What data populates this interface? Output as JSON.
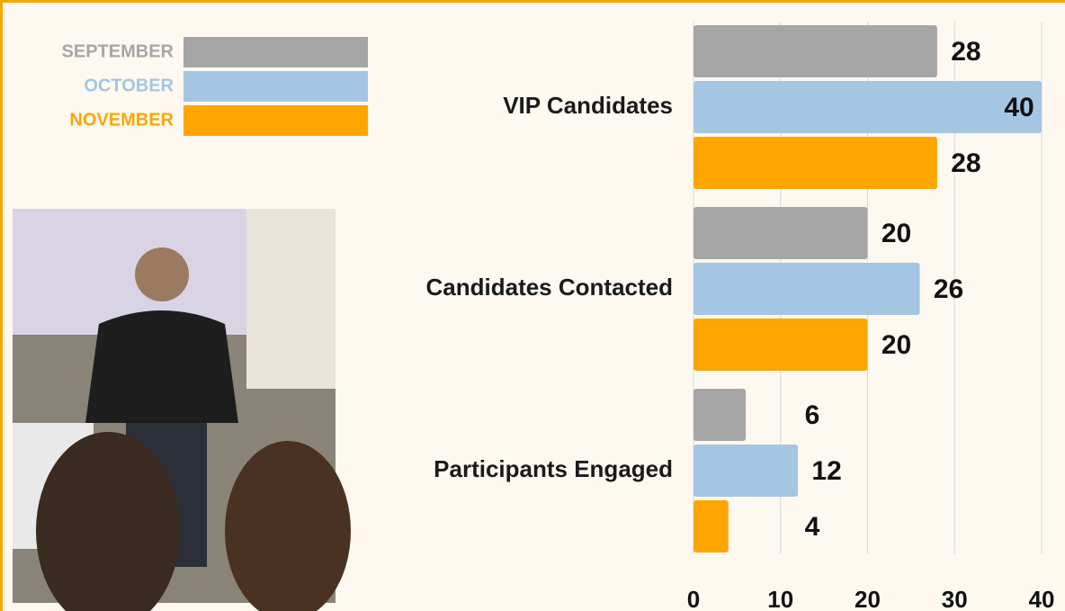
{
  "chart_data": {
    "type": "bar",
    "orientation": "horizontal",
    "categories": [
      "VIP Candidates",
      "Candidates Contacted",
      "Participants Engaged"
    ],
    "series": [
      {
        "name": "SEPTEMBER",
        "color": "#a6a6a6",
        "values": [
          28,
          20,
          6
        ]
      },
      {
        "name": "OCTOBER",
        "color": "#a4c6e2",
        "values": [
          40,
          26,
          12
        ]
      },
      {
        "name": "NOVEMBER",
        "color": "#ffa500",
        "values": [
          28,
          20,
          4
        ]
      }
    ],
    "xlim": [
      0,
      40
    ],
    "xticks": [
      0,
      10,
      20,
      30,
      40
    ],
    "grid": true,
    "legend": "top-left"
  }
}
